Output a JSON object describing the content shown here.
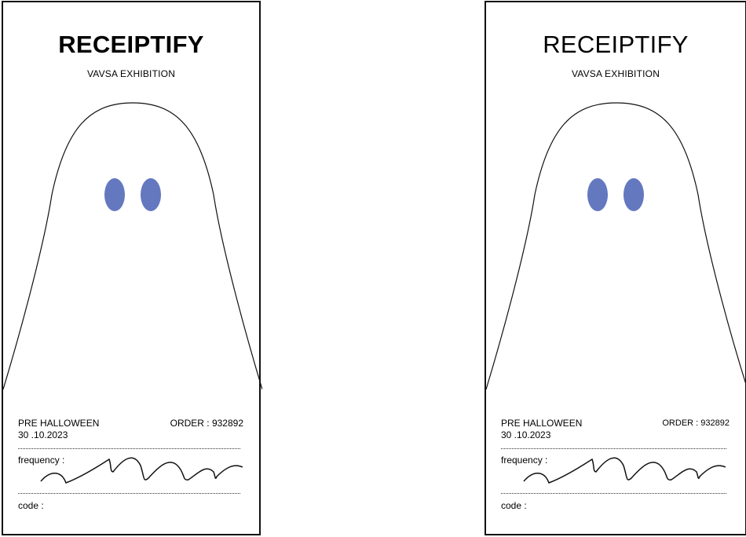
{
  "receipts": [
    {
      "title": "RECEIPTIFY",
      "subtitle": "VAVSA EXHIBITION",
      "event": "PRE HALLOWEEN",
      "date": "30 .10.2023",
      "order_label": "ORDER : ",
      "order_number": "932892",
      "frequency_label": "frequency :",
      "code_label": "code :"
    },
    {
      "title": "RECEIPTIFY",
      "subtitle": "VAVSA EXHIBITION",
      "event": "PRE HALLOWEEN",
      "date": "30 .10.2023",
      "order_label": "ORDER : ",
      "order_number": "932892",
      "frequency_label": "frequency :",
      "code_label": "code :"
    }
  ],
  "colors": {
    "ghost_eyes": "#6478c0",
    "outline": "#111111"
  },
  "icons": [
    "ghost-illustration",
    "signature-wave"
  ]
}
